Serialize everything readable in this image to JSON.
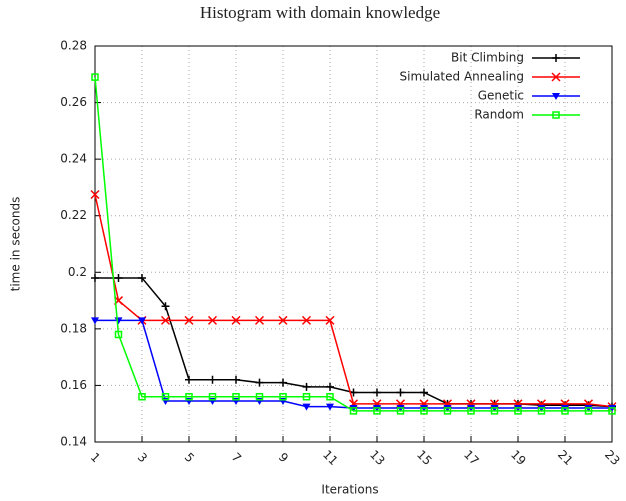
{
  "chart_data": {
    "type": "line",
    "title": "Histogram with domain knowledge",
    "x_label": "Iterations",
    "y_label": "time in seconds",
    "x": [
      1,
      2,
      3,
      4,
      5,
      6,
      7,
      8,
      9,
      10,
      11,
      12,
      13,
      14,
      15,
      16,
      17,
      18,
      19,
      20,
      21,
      22,
      23
    ],
    "series": [
      {
        "name": "Bit Climbing",
        "color": "#000000",
        "marker": "plus",
        "values": [
          0.198,
          0.198,
          0.198,
          0.188,
          0.162,
          0.162,
          0.162,
          0.161,
          0.161,
          0.1595,
          0.1595,
          0.1575,
          0.1575,
          0.1575,
          0.1575,
          0.1535,
          0.1535,
          0.1535,
          0.1535,
          0.153,
          0.153,
          0.153,
          0.1525
        ]
      },
      {
        "name": "Simulated Annealing",
        "color": "#ff0000",
        "marker": "cross",
        "values": [
          0.2275,
          0.19,
          0.183,
          0.183,
          0.183,
          0.183,
          0.183,
          0.183,
          0.183,
          0.183,
          0.183,
          0.1535,
          0.1535,
          0.1535,
          0.1535,
          0.1535,
          0.1535,
          0.1535,
          0.1535,
          0.1535,
          0.1535,
          0.1535,
          0.1525
        ]
      },
      {
        "name": "Genetic",
        "color": "#0000ff",
        "marker": "triangle",
        "values": [
          0.183,
          0.183,
          0.183,
          0.1545,
          0.1545,
          0.1545,
          0.1545,
          0.1545,
          0.1545,
          0.1525,
          0.1525,
          0.152,
          0.152,
          0.152,
          0.152,
          0.152,
          0.152,
          0.152,
          0.152,
          0.152,
          0.152,
          0.152,
          0.152
        ]
      },
      {
        "name": "Random",
        "color": "#00ff00",
        "marker": "square",
        "values": [
          0.269,
          0.178,
          0.156,
          0.156,
          0.156,
          0.156,
          0.156,
          0.156,
          0.156,
          0.156,
          0.156,
          0.151,
          0.151,
          0.151,
          0.151,
          0.151,
          0.151,
          0.151,
          0.151,
          0.151,
          0.151,
          0.151,
          0.151
        ]
      }
    ],
    "xlim": [
      1,
      23
    ],
    "xticks": [
      1,
      3,
      5,
      7,
      9,
      11,
      13,
      15,
      17,
      19,
      21,
      23
    ],
    "ylim": [
      0.14,
      0.28
    ],
    "yticks": [
      0.14,
      0.16,
      0.18,
      0.2,
      0.22,
      0.24,
      0.26,
      0.28
    ],
    "grid": true,
    "legend": "top-right"
  }
}
